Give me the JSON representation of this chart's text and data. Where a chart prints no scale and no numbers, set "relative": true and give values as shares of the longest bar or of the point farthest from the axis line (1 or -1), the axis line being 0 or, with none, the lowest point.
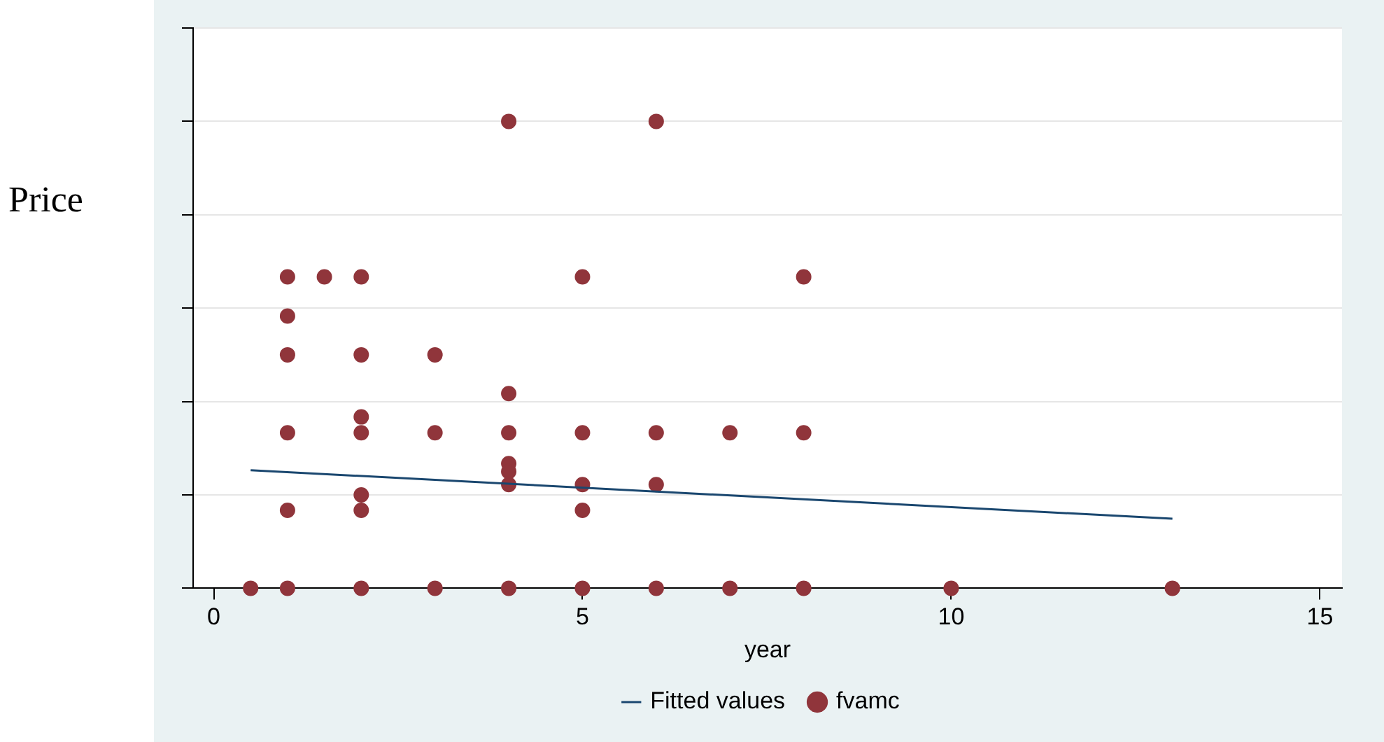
{
  "chart_data": {
    "type": "scatter",
    "xlabel": "year",
    "ylabel": "Price",
    "relative": true,
    "xlim": [
      -0.28,
      15.3
    ],
    "xticks": [
      0,
      5,
      10,
      15
    ],
    "grid": "y",
    "legend": "bottom",
    "series": [
      {
        "name": "Fitted values",
        "type": "line",
        "color": "#1a476f",
        "x": [
          0.5,
          13
        ],
        "values": [
          0.253,
          0.149
        ]
      },
      {
        "name": "fvamc",
        "color": "#90353b",
        "marker": "circle",
        "x": [
          0.5,
          1,
          2,
          3,
          4,
          5,
          6,
          7,
          8,
          10,
          13,
          4,
          6,
          1,
          1.5,
          2,
          5,
          8,
          1,
          1,
          2,
          3,
          4,
          2,
          1,
          2,
          3,
          4,
          5,
          6,
          7,
          8,
          4,
          4,
          4,
          5,
          6,
          2,
          1,
          2,
          5
        ],
        "values": [
          0,
          0,
          0,
          0,
          0,
          0,
          0,
          0,
          0,
          0,
          0,
          1,
          1,
          0.667,
          0.667,
          0.667,
          0.667,
          0.667,
          0.583,
          0.5,
          0.5,
          0.5,
          0.417,
          0.367,
          0.333,
          0.333,
          0.333,
          0.333,
          0.333,
          0.333,
          0.333,
          0.333,
          0.267,
          0.25,
          0.222,
          0.222,
          0.222,
          0.2,
          0.167,
          0.167,
          0.167
        ]
      }
    ]
  }
}
